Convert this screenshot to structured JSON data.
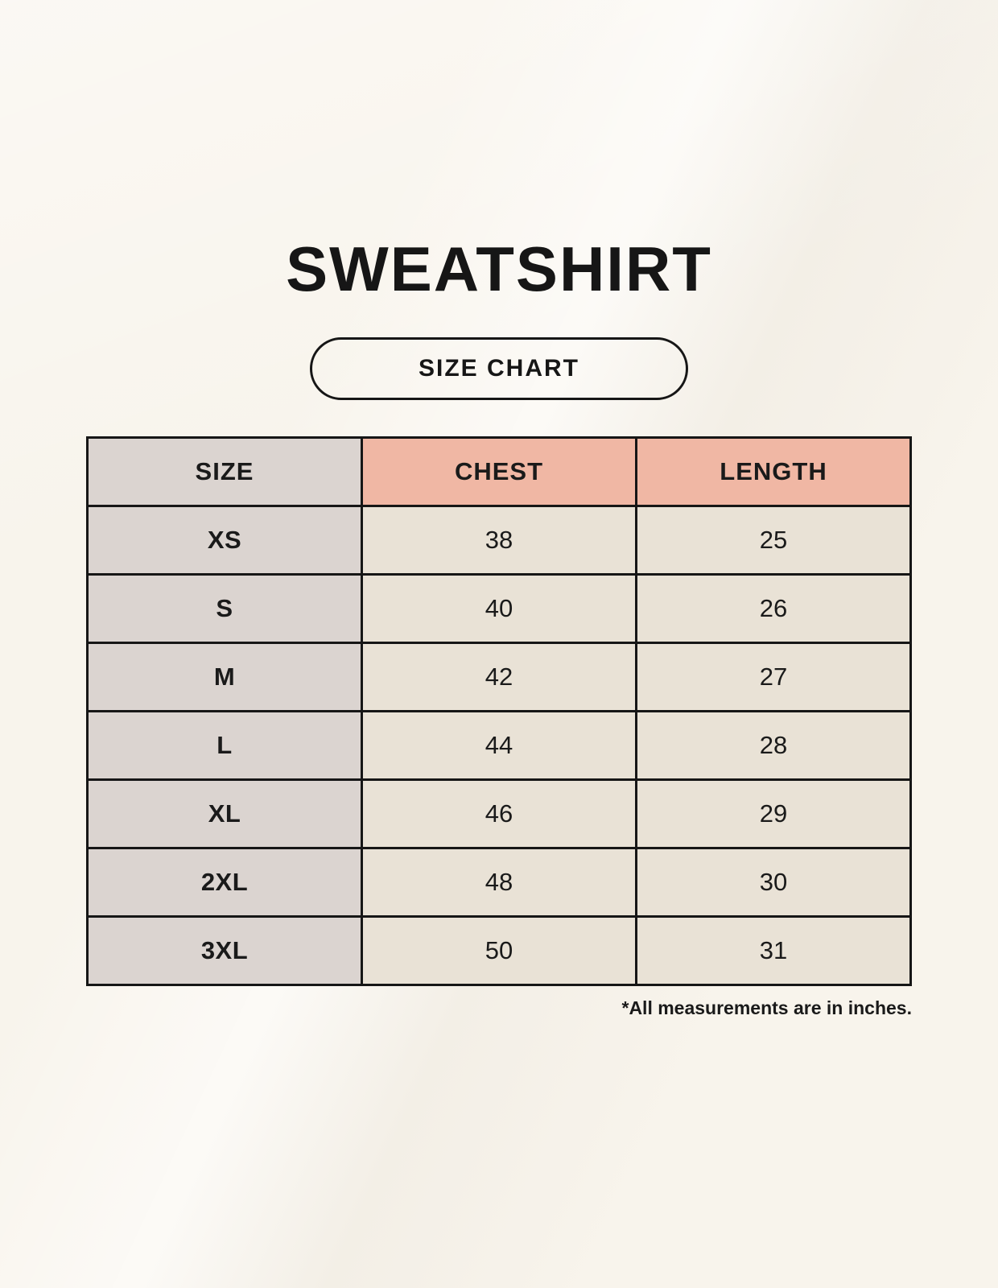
{
  "page": {
    "title": "SWEATSHIRT",
    "badge_label": "SIZE CHART",
    "footnote": "*All measurements are in inches."
  },
  "table": {
    "columns": [
      "SIZE",
      "CHEST",
      "LENGTH"
    ],
    "rows": [
      [
        "XS",
        "38",
        "25"
      ],
      [
        "S",
        "40",
        "26"
      ],
      [
        "M",
        "42",
        "27"
      ],
      [
        "L",
        "44",
        "28"
      ],
      [
        "XL",
        "46",
        "29"
      ],
      [
        "2XL",
        "48",
        "30"
      ],
      [
        "3XL",
        "50",
        "31"
      ]
    ]
  },
  "colors": {
    "bg": "#F8F4EC",
    "accent": "#F0B7A4",
    "col1": "#DBD4D0",
    "cell": "#E9E2D6",
    "ink": "#161616",
    "text": "#1A1A1A"
  }
}
